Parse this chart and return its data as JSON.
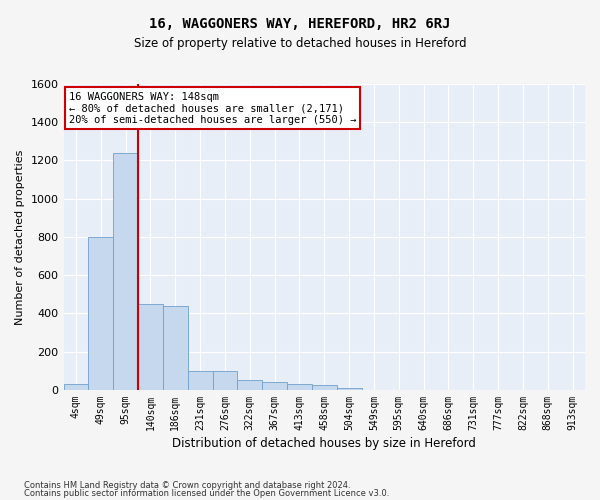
{
  "title": "16, WAGGONERS WAY, HEREFORD, HR2 6RJ",
  "subtitle": "Size of property relative to detached houses in Hereford",
  "xlabel": "Distribution of detached houses by size in Hereford",
  "ylabel": "Number of detached properties",
  "footer_line1": "Contains HM Land Registry data © Crown copyright and database right 2024.",
  "footer_line2": "Contains public sector information licensed under the Open Government Licence v3.0.",
  "bin_labels": [
    "4sqm",
    "49sqm",
    "95sqm",
    "140sqm",
    "186sqm",
    "231sqm",
    "276sqm",
    "322sqm",
    "367sqm",
    "413sqm",
    "458sqm",
    "504sqm",
    "549sqm",
    "595sqm",
    "640sqm",
    "686sqm",
    "731sqm",
    "777sqm",
    "822sqm",
    "868sqm",
    "913sqm"
  ],
  "bar_values": [
    30,
    800,
    1240,
    450,
    440,
    100,
    100,
    50,
    40,
    30,
    25,
    10,
    0,
    0,
    0,
    0,
    0,
    0,
    0,
    0,
    0
  ],
  "bar_color": "#c6d8ee",
  "bar_edge_color": "#6fa0cc",
  "background_color": "#e8eef8",
  "grid_color": "#ffffff",
  "annotation_text": "16 WAGGONERS WAY: 148sqm\n← 80% of detached houses are smaller (2,171)\n20% of semi-detached houses are larger (550) →",
  "vline_color": "#cc0000",
  "annotation_box_color": "#ffffff",
  "annotation_box_edge": "#cc0000",
  "ylim": [
    0,
    1600
  ],
  "yticks": [
    0,
    200,
    400,
    600,
    800,
    1000,
    1200,
    1400,
    1600
  ]
}
